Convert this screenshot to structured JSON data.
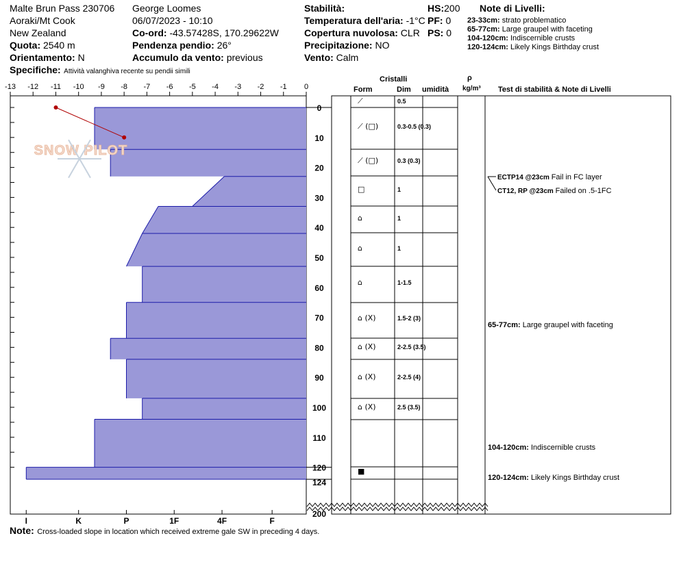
{
  "header": {
    "location": "Malte Brun Pass 230706",
    "region": "Aoraki/Mt Cook",
    "country": "New Zealand",
    "elevation_label": "Quota:",
    "elevation_value": "2540 m",
    "aspect_label": "Orientamento:",
    "aspect_value": "N",
    "observer": "George Loomes",
    "datetime": "06/07/2023 - 10:10",
    "coord_label": "Co-ord:",
    "coord_value": "-43.57428S, 170.29622W",
    "slope_label": "Pendenza pendio:",
    "slope_value": "26°",
    "wind_loading_label": "Accumulo da vento:",
    "wind_loading_value": "previous",
    "stability_label": "Stabilità:",
    "air_temp_label": "Temperatura dell'aria:",
    "air_temp_value": "-1°C",
    "sky_label": "Copertura nuvolosa:",
    "sky_value": "CLR",
    "precip_label": "Precipitazione:",
    "precip_value": "NO",
    "wind_label": "Vento:",
    "wind_value": "Calm",
    "hs_label": "HS:",
    "hs_value": "200",
    "pf_label": "PF:",
    "pf_value": "0",
    "ps_label": "PS:",
    "ps_value": "0",
    "specifics_label": "Specifiche:",
    "specifics_value": "Attività valanghiva recente su pendii simili",
    "notes_title": "Note di Livelli:",
    "notes": [
      {
        "range": "23-33cm:",
        "text": "strato problematico"
      },
      {
        "range": "65-77cm:",
        "text": "Large graupel with faceting"
      },
      {
        "range": "104-120cm:",
        "text": "Indiscernible crusts"
      },
      {
        "range": "120-124cm:",
        "text": "Likely Kings Birthday crust"
      }
    ]
  },
  "columns": {
    "crystals": "Cristalli",
    "form": "Form",
    "size": "Dim",
    "moisture": "umidità",
    "rho": "ρ",
    "density_unit": "kg/m³",
    "tests": "Test di stabilità & Note di Livelli"
  },
  "footer": {
    "note_label": "Note:",
    "note_text": "Cross-loaded slope in location which received extreme gale SW in preceding 4 days."
  },
  "logo": "SNOW PILOT",
  "colors": {
    "layer_fill": "#9a98d8",
    "layer_stroke": "#1a1aa8",
    "temp_line": "#b00000"
  },
  "chart_data": {
    "type": "snow-profile",
    "temperature_axis": {
      "ticks": [
        "-13",
        "-12",
        "-11",
        "-10",
        "-9",
        "-8",
        "-7",
        "-6",
        "-5",
        "-4",
        "-3",
        "-2",
        "-1",
        "0"
      ],
      "range": [
        -13,
        0
      ]
    },
    "hardness_axis": {
      "ticks": [
        "I",
        "K",
        "P",
        "1F",
        "4F",
        "F"
      ],
      "positions": [
        -12.3,
        -10,
        -7.9,
        -5.8,
        -3.7,
        -1.5
      ]
    },
    "depth_ticks": [
      "0",
      "10",
      "20",
      "30",
      "40",
      "50",
      "60",
      "70",
      "80",
      "90",
      "100",
      "110",
      "120",
      "124",
      "200"
    ],
    "temperature_profile": [
      {
        "temp": -11,
        "depth": 0
      },
      {
        "temp": -8,
        "depth": 10
      }
    ],
    "layers": [
      {
        "top": 0,
        "bottom": 14,
        "hardness_top": -9.3,
        "hardness_bottom": -9.3,
        "form": "⟋",
        "size": "0.5"
      },
      {
        "top": 14,
        "bottom": 23,
        "hardness_top": -8.6,
        "hardness_bottom": -8.6,
        "form": "⟋ (□)",
        "size": "0.3-0.5 (0.3)"
      },
      {
        "top": 23,
        "bottom": 33,
        "hardness_top": -3.6,
        "hardness_bottom": -5,
        "form": "⟋ (□)",
        "size": "0.3 (0.3)"
      },
      {
        "top": 33,
        "bottom": 42,
        "hardness_top": -6.5,
        "hardness_bottom": -7.2,
        "form": "□",
        "size": "1"
      },
      {
        "top": 42,
        "bottom": 53,
        "hardness_top": -7.2,
        "hardness_bottom": -7.9,
        "form": "⌂",
        "size": "1"
      },
      {
        "top": 53,
        "bottom": 65,
        "hardness_top": -7.2,
        "hardness_bottom": -7.2,
        "form": "⌂",
        "size": "1"
      },
      {
        "top": 65,
        "bottom": 77,
        "hardness_top": -7.9,
        "hardness_bottom": -7.9,
        "form": "⌂",
        "size": "1-1.5"
      },
      {
        "top": 77,
        "bottom": 84,
        "hardness_top": -8.6,
        "hardness_bottom": -8.6,
        "form": "⌂ (X)",
        "size": "1.5-2 (3)"
      },
      {
        "top": 84,
        "bottom": 97,
        "hardness_top": -7.9,
        "hardness_bottom": -7.9,
        "form": "⌂ (X)",
        "size": "2-2.5 (3.5)"
      },
      {
        "top": 97,
        "bottom": 104,
        "hardness_top": -7.2,
        "hardness_bottom": -7.2,
        "form": "⌂ (X)",
        "size": "2-2.5 (4)"
      },
      {
        "top": 104,
        "bottom": 120,
        "hardness_top": -9.3,
        "hardness_bottom": -9.3,
        "form": "⌂ (X)",
        "size": "2.5 (3.5)"
      },
      {
        "top": 120,
        "bottom": 124,
        "hardness_top": -12.3,
        "hardness_bottom": -12.3,
        "form": "■",
        "size": ""
      }
    ],
    "tests": [
      {
        "label": "ECTP14 @23cm",
        "text": "Fail in FC layer"
      },
      {
        "label": "CT12, RP @23cm",
        "text": "Failed on .5-1FC"
      }
    ],
    "layer_notes": [
      {
        "range": "65-77cm:",
        "text": "Large graupel with faceting"
      },
      {
        "range": "104-120cm:",
        "text": "Indiscernible crusts"
      },
      {
        "range": "120-124cm:",
        "text": "Likely Kings Birthday crust"
      }
    ]
  }
}
